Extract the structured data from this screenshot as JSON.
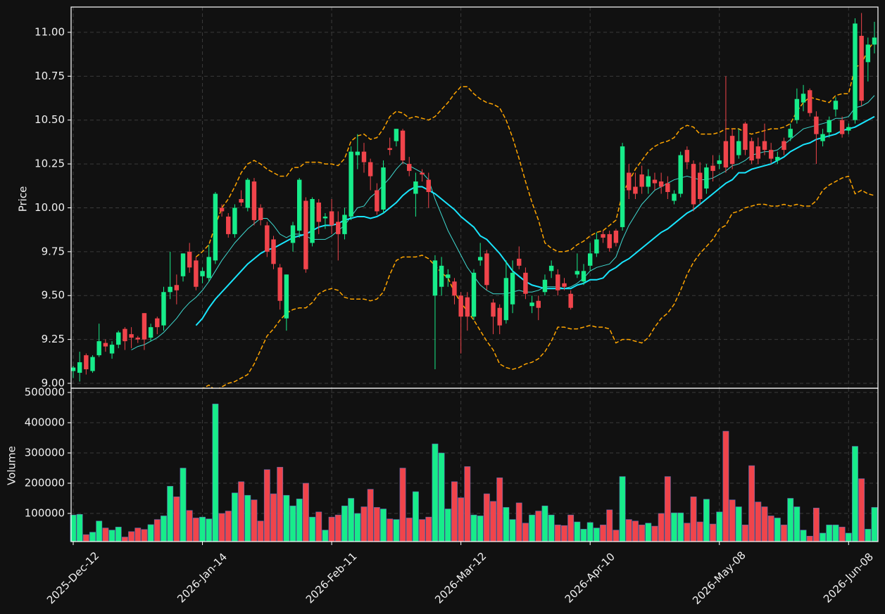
{
  "chart_data": {
    "type": "candlestick",
    "ylabel": "Price",
    "ylim": [
      8.972,
      11.144
    ],
    "yticks": [
      {
        "value": 9,
        "label": "9.00"
      },
      9.25,
      {
        "value": 9.5,
        "label": "9.50"
      },
      9.75,
      {
        "value": 10,
        "label": "10.00"
      },
      10.25,
      {
        "value": 10.5,
        "label": "10.50"
      },
      10.75,
      {
        "value": 11,
        "label": "11.00"
      }
    ],
    "grid": true,
    "up_color": "#17ec8a",
    "down_color": "#f0444b",
    "categories": [
      "2025-Dec-12",
      null,
      null,
      null,
      null,
      null,
      null,
      null,
      null,
      null,
      null,
      null,
      null,
      null,
      null,
      null,
      null,
      null,
      null,
      null,
      "2026-Jan-14",
      null,
      null,
      null,
      null,
      null,
      null,
      null,
      null,
      null,
      null,
      null,
      null,
      null,
      null,
      null,
      null,
      null,
      null,
      null,
      "2026-Feb-11",
      null,
      null,
      null,
      null,
      null,
      null,
      null,
      null,
      null,
      null,
      null,
      null,
      null,
      null,
      null,
      null,
      null,
      null,
      null,
      "2026-Mar-12",
      null,
      null,
      null,
      null,
      null,
      null,
      null,
      null,
      null,
      null,
      null,
      null,
      null,
      null,
      null,
      null,
      null,
      null,
      null,
      "2026-Apr-10",
      null,
      null,
      null,
      null,
      null,
      null,
      null,
      null,
      null,
      null,
      null,
      null,
      null,
      null,
      null,
      null,
      null,
      null,
      null,
      "2026-May-08",
      null,
      null,
      null,
      null,
      null,
      null,
      null,
      null,
      null,
      null,
      null,
      null,
      null,
      null,
      null,
      null,
      null,
      null,
      null,
      "2026-Jun-08",
      null,
      null,
      null,
      null
    ],
    "open": [
      9.07,
      9.06,
      9.16,
      9.07,
      9.16,
      9.23,
      9.17,
      9.22,
      9.31,
      9.28,
      9.26,
      9.4,
      9.26,
      9.37,
      9.33,
      9.52,
      9.56,
      9.61,
      9.75,
      9.7,
      9.61,
      9.6,
      9.7,
      10.0,
      9.95,
      9.85,
      10.05,
      10.0,
      10.15,
      10.0,
      9.9,
      9.82,
      9.66,
      9.37,
      9.8,
      9.87,
      10.04,
      9.8,
      10.03,
      9.94,
      9.98,
      9.92,
      9.85,
      9.95,
      10.3,
      10.32,
      10.26,
      10.1,
      9.99,
      10.34,
      10.38,
      10.44,
      10.25,
      10.08,
      10.2,
      10.16,
      9.5,
      9.55,
      9.6,
      9.58,
      9.5,
      9.49,
      9.38,
      9.7,
      9.74,
      9.46,
      9.43,
      9.36,
      9.45,
      9.71,
      9.63,
      9.44,
      9.47,
      9.52,
      9.64,
      9.62,
      9.57,
      9.51,
      9.62,
      9.58,
      9.67,
      9.74,
      9.85,
      9.85,
      9.87,
      9.89,
      10.2,
      10.12,
      10.19,
      10.12,
      10.16,
      10.15,
      10.14,
      10.04,
      10.08,
      10.33,
      10.25,
      10.2,
      10.11,
      10.24,
      10.25,
      10.38,
      10.41,
      10.3,
      10.48,
      10.38,
      10.35,
      10.38,
      10.33,
      10.27,
      10.38,
      10.4,
      10.5,
      10.6,
      10.67,
      10.52,
      10.38,
      10.43,
      10.56,
      10.5,
      10.44,
      10.5,
      10.98,
      10.83,
      10.93
    ],
    "high": [
      9.1,
      9.18,
      9.17,
      9.16,
      9.34,
      9.25,
      9.24,
      9.3,
      9.32,
      9.32,
      9.27,
      9.4,
      9.34,
      9.38,
      9.55,
      9.75,
      9.62,
      9.74,
      9.8,
      9.72,
      9.66,
      9.79,
      10.09,
      10.02,
      9.97,
      10.02,
      10.1,
      10.17,
      10.17,
      10.02,
      9.92,
      9.84,
      9.68,
      9.62,
      9.92,
      10.17,
      10.06,
      10.06,
      10.05,
      9.97,
      10.05,
      9.98,
      10.0,
      10.35,
      10.42,
      10.37,
      10.28,
      10.14,
      10.27,
      10.4,
      10.45,
      10.45,
      10.29,
      10.2,
      10.22,
      10.2,
      9.73,
      9.72,
      9.65,
      9.6,
      9.52,
      9.52,
      9.65,
      9.8,
      9.76,
      9.48,
      9.45,
      9.7,
      9.7,
      9.78,
      9.66,
      9.5,
      9.5,
      9.62,
      9.7,
      9.65,
      9.6,
      9.53,
      9.74,
      9.68,
      9.8,
      9.86,
      9.87,
      9.87,
      9.88,
      10.37,
      10.25,
      10.2,
      10.24,
      10.22,
      10.2,
      10.2,
      10.18,
      10.1,
      10.32,
      10.35,
      10.27,
      10.26,
      10.25,
      10.3,
      10.3,
      10.75,
      10.45,
      10.45,
      10.49,
      10.4,
      10.4,
      10.48,
      10.37,
      10.32,
      10.4,
      10.48,
      10.68,
      10.7,
      10.68,
      10.55,
      10.45,
      10.52,
      10.63,
      10.52,
      10.48,
      11.08,
      11.11,
      10.97,
      11.06
    ],
    "low": [
      9.03,
      9.01,
      9.05,
      9.06,
      9.15,
      9.18,
      9.14,
      9.2,
      9.19,
      9.2,
      9.23,
      9.19,
      9.24,
      9.28,
      9.3,
      9.48,
      9.45,
      9.58,
      9.63,
      9.53,
      9.57,
      9.58,
      9.68,
      9.95,
      9.83,
      9.83,
      10.01,
      9.98,
      9.9,
      9.9,
      9.72,
      9.65,
      9.42,
      9.3,
      9.75,
      9.83,
      9.63,
      9.78,
      9.85,
      9.88,
      9.85,
      9.7,
      9.82,
      9.93,
      10.22,
      10.2,
      10.1,
      9.96,
      9.97,
      10.3,
      10.35,
      10.25,
      10.18,
      9.95,
      10.15,
      10.0,
      9.08,
      9.5,
      9.55,
      9.45,
      9.17,
      9.3,
      9.36,
      9.67,
      9.53,
      9.28,
      9.28,
      9.34,
      9.4,
      9.65,
      9.48,
      9.4,
      9.36,
      9.5,
      9.6,
      9.5,
      9.53,
      9.42,
      9.6,
      9.56,
      9.64,
      9.72,
      9.8,
      9.75,
      9.78,
      9.87,
      10.05,
      10.05,
      10.08,
      10.08,
      10.1,
      10.08,
      10.05,
      10.02,
      10.06,
      10.22,
      9.98,
      10.02,
      10.08,
      10.15,
      10.22,
      10.2,
      10.22,
      10.28,
      10.3,
      10.25,
      10.25,
      10.3,
      10.25,
      10.25,
      10.3,
      10.38,
      10.48,
      10.55,
      10.52,
      10.25,
      10.35,
      10.4,
      10.52,
      10.4,
      10.42,
      10.48,
      10.58,
      10.72,
      10.88
    ],
    "close": [
      9.09,
      9.12,
      9.08,
      9.15,
      9.24,
      9.21,
      9.22,
      9.29,
      9.24,
      9.26,
      9.25,
      9.25,
      9.32,
      9.32,
      9.52,
      9.55,
      9.53,
      9.74,
      9.66,
      9.55,
      9.64,
      9.72,
      10.08,
      9.98,
      9.85,
      10.0,
      10.03,
      10.16,
      9.93,
      9.93,
      9.75,
      9.68,
      9.47,
      9.62,
      9.9,
      10.16,
      9.65,
      10.05,
      9.92,
      9.95,
      9.9,
      9.85,
      9.96,
      10.32,
      10.32,
      10.26,
      10.18,
      9.98,
      10.23,
      10.33,
      10.45,
      10.27,
      10.21,
      10.15,
      10.19,
      10.09,
      9.7,
      9.67,
      9.62,
      9.5,
      9.38,
      9.38,
      9.63,
      9.72,
      9.56,
      9.38,
      9.33,
      9.6,
      9.63,
      9.67,
      9.51,
      9.46,
      9.43,
      9.59,
      9.67,
      9.53,
      9.55,
      9.43,
      9.64,
      9.64,
      9.74,
      9.82,
      9.83,
      9.77,
      9.8,
      10.35,
      10.1,
      10.08,
      10.12,
      10.18,
      10.14,
      10.12,
      10.09,
      10.08,
      10.3,
      10.26,
      10.02,
      10.05,
      10.23,
      10.21,
      10.27,
      10.23,
      10.25,
      10.38,
      10.33,
      10.27,
      10.28,
      10.33,
      10.28,
      10.29,
      10.33,
      10.45,
      10.62,
      10.65,
      10.54,
      10.42,
      10.42,
      10.5,
      10.61,
      10.42,
      10.46,
      11.05,
      10.61,
      10.93,
      10.97
    ],
    "lines": [
      {
        "color": "#3fd9d0",
        "width": 1,
        "dash": false,
        "values": [
          null,
          null,
          null,
          null,
          null,
          null,
          null,
          null,
          null,
          9.19,
          9.21,
          9.22,
          9.24,
          9.26,
          9.29,
          9.33,
          9.37,
          9.42,
          9.46,
          9.49,
          9.53,
          9.58,
          9.64,
          9.7,
          9.75,
          9.8,
          9.84,
          9.88,
          9.91,
          9.94,
          9.94,
          9.9,
          9.85,
          9.83,
          9.85,
          9.85,
          9.84,
          9.82,
          9.82,
          9.82,
          9.84,
          9.87,
          9.9,
          9.95,
          10.0,
          10.01,
          10.06,
          10.09,
          10.13,
          10.17,
          10.22,
          10.26,
          10.24,
          10.22,
          10.2,
          10.16,
          10.05,
          9.96,
          9.87,
          9.8,
          9.73,
          9.66,
          9.61,
          9.56,
          9.53,
          9.51,
          9.51,
          9.51,
          9.52,
          9.53,
          9.52,
          9.52,
          9.53,
          9.55,
          9.55,
          9.55,
          9.54,
          9.55,
          9.57,
          9.6,
          9.64,
          9.66,
          9.67,
          9.68,
          9.72,
          9.82,
          9.9,
          9.96,
          10.02,
          10.06,
          10.1,
          10.12,
          10.14,
          10.16,
          10.17,
          10.18,
          10.17,
          10.16,
          10.16,
          10.17,
          10.19,
          10.21,
          10.24,
          10.25,
          10.27,
          10.3,
          10.31,
          10.32,
          10.32,
          10.33,
          10.36,
          10.39,
          10.42,
          10.45,
          10.46,
          10.47,
          10.48,
          10.49,
          10.51,
          10.51,
          10.52,
          10.57,
          10.58,
          10.6,
          10.64
        ]
      },
      {
        "color": "#19e6ff",
        "width": 2,
        "dash": false,
        "values": [
          null,
          null,
          null,
          null,
          null,
          null,
          null,
          null,
          null,
          null,
          null,
          null,
          null,
          null,
          null,
          null,
          null,
          null,
          null,
          9.33,
          9.37,
          9.43,
          9.48,
          9.52,
          9.56,
          9.6,
          9.64,
          9.68,
          9.71,
          9.74,
          9.76,
          9.77,
          9.79,
          9.81,
          9.83,
          9.84,
          9.85,
          9.87,
          9.89,
          9.9,
          9.9,
          9.91,
          9.93,
          9.94,
          9.95,
          9.95,
          9.94,
          9.95,
          9.97,
          10.0,
          10.03,
          10.07,
          10.1,
          10.12,
          10.12,
          10.1,
          10.08,
          10.05,
          10.02,
          9.99,
          9.95,
          9.92,
          9.89,
          9.84,
          9.82,
          9.78,
          9.74,
          9.69,
          9.64,
          9.61,
          9.58,
          9.56,
          9.55,
          9.54,
          9.54,
          9.54,
          9.54,
          9.54,
          9.56,
          9.57,
          9.59,
          9.59,
          9.6,
          9.64,
          9.66,
          9.69,
          9.71,
          9.74,
          9.77,
          9.8,
          9.83,
          9.86,
          9.88,
          9.91,
          9.94,
          9.97,
          9.99,
          10.02,
          10.05,
          10.08,
          10.11,
          10.14,
          10.16,
          10.2,
          10.2,
          10.22,
          10.23,
          10.24,
          10.25,
          10.27,
          10.29,
          10.32,
          10.34,
          10.36,
          10.37,
          10.39,
          10.4,
          10.41,
          10.42,
          10.44,
          10.45,
          10.46,
          10.48,
          10.5,
          10.52
        ]
      },
      {
        "color": "#ffa500",
        "width": 1.5,
        "dash": true,
        "values": [
          null,
          null,
          null,
          null,
          null,
          null,
          null,
          null,
          null,
          null,
          null,
          null,
          null,
          null,
          null,
          null,
          null,
          null,
          null,
          9.72,
          9.75,
          9.79,
          9.9,
          10.0,
          10.05,
          10.12,
          10.2,
          10.25,
          10.27,
          10.25,
          10.22,
          10.2,
          10.18,
          10.18,
          10.23,
          10.23,
          10.26,
          10.26,
          10.26,
          10.25,
          10.25,
          10.24,
          10.28,
          10.38,
          10.41,
          10.42,
          10.39,
          10.4,
          10.45,
          10.52,
          10.55,
          10.54,
          10.51,
          10.52,
          10.51,
          10.5,
          10.52,
          10.56,
          10.6,
          10.65,
          10.69,
          10.69,
          10.65,
          10.62,
          10.6,
          10.59,
          10.57,
          10.5,
          10.4,
          10.28,
          10.15,
          10.03,
          9.93,
          9.8,
          9.77,
          9.75,
          9.75,
          9.76,
          9.79,
          9.81,
          9.84,
          9.86,
          9.87,
          9.9,
          9.93,
          10.08,
          10.15,
          10.22,
          10.27,
          10.32,
          10.35,
          10.37,
          10.38,
          10.4,
          10.45,
          10.47,
          10.46,
          10.42,
          10.42,
          10.42,
          10.43,
          10.45,
          10.45,
          10.45,
          10.43,
          10.42,
          10.43,
          10.44,
          10.45,
          10.45,
          10.46,
          10.48,
          10.55,
          10.6,
          10.63,
          10.62,
          10.61,
          10.6,
          10.64,
          10.65,
          10.65,
          10.8,
          10.82,
          10.9,
          10.95
        ]
      },
      {
        "color": "#ffa500",
        "width": 1.5,
        "dash": true,
        "values": [
          null,
          null,
          null,
          null,
          null,
          null,
          null,
          null,
          null,
          null,
          null,
          null,
          null,
          null,
          null,
          null,
          null,
          null,
          null,
          8.94,
          8.97,
          8.99,
          8.96,
          8.98,
          9.0,
          9.01,
          9.03,
          9.05,
          9.11,
          9.19,
          9.27,
          9.31,
          9.36,
          9.4,
          9.42,
          9.43,
          9.43,
          9.46,
          9.51,
          9.53,
          9.54,
          9.53,
          9.49,
          9.48,
          9.48,
          9.48,
          9.47,
          9.48,
          9.52,
          9.62,
          9.7,
          9.72,
          9.72,
          9.72,
          9.73,
          9.71,
          9.67,
          9.63,
          9.6,
          9.52,
          9.46,
          9.41,
          9.36,
          9.3,
          9.24,
          9.19,
          9.11,
          9.09,
          9.08,
          9.09,
          9.11,
          9.12,
          9.14,
          9.18,
          9.24,
          9.32,
          9.32,
          9.31,
          9.31,
          9.32,
          9.33,
          9.32,
          9.32,
          9.31,
          9.23,
          9.25,
          9.25,
          9.24,
          9.23,
          9.26,
          9.32,
          9.37,
          9.4,
          9.45,
          9.53,
          9.62,
          9.69,
          9.74,
          9.78,
          9.82,
          9.88,
          9.9,
          9.97,
          9.98,
          10.0,
          10.01,
          10.02,
          10.02,
          10.01,
          10.01,
          10.02,
          10.01,
          10.02,
          10.01,
          10.01,
          10.04,
          10.1,
          10.13,
          10.15,
          10.17,
          10.18,
          10.08,
          10.1,
          10.08,
          10.07
        ]
      }
    ],
    "volume": {
      "ylabel": "Volume",
      "ylim": [
        7000,
        514000
      ],
      "yticks": [
        100000,
        200000,
        300000,
        400000,
        500000
      ],
      "values": [
        95000,
        97000,
        30000,
        38000,
        75000,
        52000,
        45000,
        55000,
        22000,
        40000,
        52000,
        47000,
        63000,
        80000,
        92000,
        190000,
        155000,
        250000,
        110000,
        85000,
        88000,
        82000,
        462000,
        100000,
        108000,
        168000,
        205000,
        160000,
        145000,
        75000,
        245000,
        165000,
        253000,
        160000,
        125000,
        148000,
        200000,
        88000,
        105000,
        45000,
        88000,
        95000,
        125000,
        150000,
        100000,
        122000,
        180000,
        120000,
        115000,
        82000,
        80000,
        250000,
        85000,
        172000,
        80000,
        88000,
        330000,
        300000,
        115000,
        205000,
        152000,
        255000,
        95000,
        92000,
        165000,
        140000,
        218000,
        120000,
        80000,
        135000,
        68000,
        95000,
        108000,
        125000,
        95000,
        62000,
        60000,
        95000,
        72000,
        48000,
        70000,
        52000,
        62000,
        112000,
        45000,
        222000,
        80000,
        75000,
        62000,
        68000,
        58000,
        100000,
        222000,
        102000,
        102000,
        68000,
        155000,
        72000,
        147000,
        65000,
        105000,
        372000,
        145000,
        122000,
        62000,
        258000,
        138000,
        122000,
        92000,
        85000,
        62000,
        150000,
        122000,
        45000,
        25000,
        118000,
        35000,
        62000,
        62000,
        55000,
        35000,
        322000,
        215000,
        48000,
        120000
      ]
    }
  }
}
